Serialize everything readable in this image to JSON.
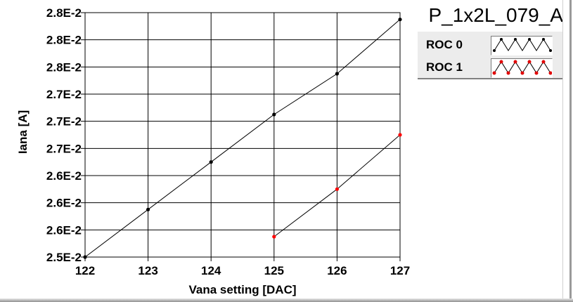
{
  "chart_data": {
    "type": "line",
    "title": "P_1x2L_079_A",
    "xlabel": "Vana setting [DAC]",
    "ylabel": "Iana [A]",
    "x_ticks": [
      122,
      123,
      124,
      125,
      126,
      127
    ],
    "y_tick_labels": [
      "2.8E-2",
      "2.8E-2",
      "2.8E-2",
      "2.7E-2",
      "2.7E-2",
      "2.7E-2",
      "2.6E-2",
      "2.6E-2",
      "2.6E-2",
      "2.5E-2"
    ],
    "xlim": [
      122,
      127
    ],
    "ylim": [
      0.025,
      0.0286
    ],
    "grid": true,
    "legend_position": "top-right",
    "series": [
      {
        "name": "ROC 0",
        "color": "#000000",
        "x": [
          122,
          123,
          124,
          125,
          126,
          127
        ],
        "y": [
          0.025,
          0.0257,
          0.0264,
          0.0271,
          0.0277,
          0.0285
        ]
      },
      {
        "name": "ROC 1",
        "color": "#ff0000",
        "x": [
          125,
          126,
          127
        ],
        "y": [
          0.0253,
          0.026,
          0.0268
        ]
      }
    ]
  }
}
